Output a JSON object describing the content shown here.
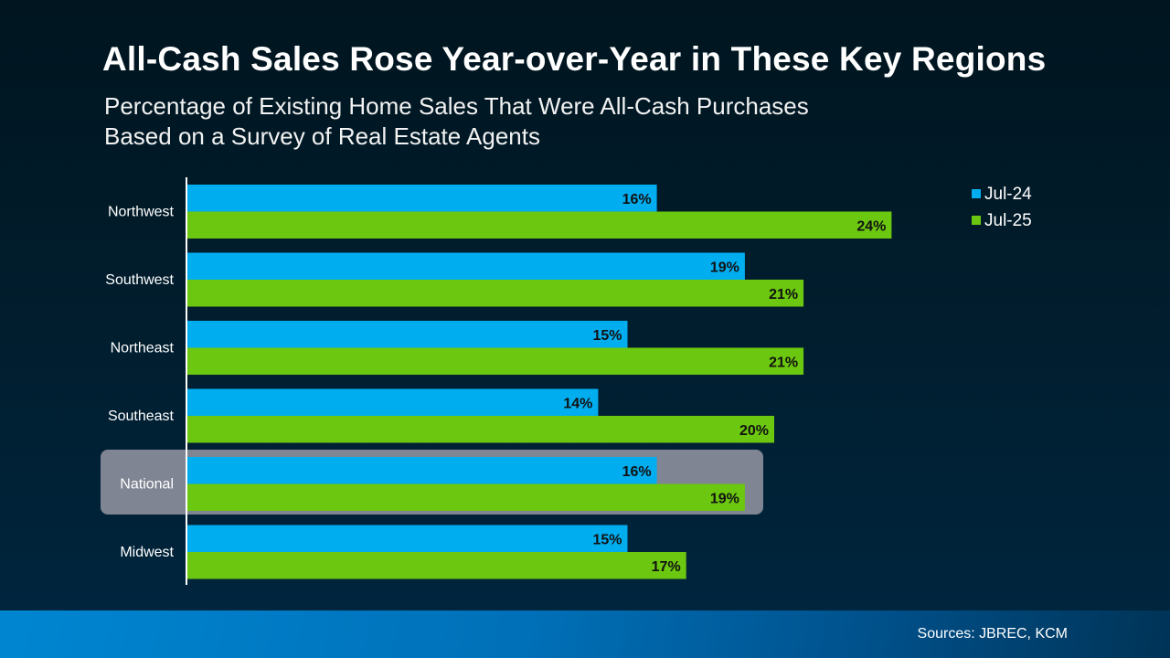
{
  "title": "All-Cash Sales Rose Year-over-Year in These Key Regions",
  "subtitle_lines": [
    "Percentage of Existing Home Sales That Were All-Cash Purchases",
    "Based on a Survey of Real Estate Agents"
  ],
  "footer": {
    "sources": "Sources: JBREC, KCM"
  },
  "chart_data": {
    "type": "bar",
    "orientation": "horizontal",
    "categories": [
      "Northwest",
      "Southwest",
      "Northeast",
      "Southeast",
      "National",
      "Midwest"
    ],
    "highlighted_category": "National",
    "series": [
      {
        "name": "Jul-24",
        "color": "#00adef",
        "values": [
          16,
          19,
          15,
          14,
          16,
          15
        ]
      },
      {
        "name": "Jul-25",
        "color": "#6bc70f",
        "values": [
          24,
          21,
          21,
          20,
          19,
          17
        ]
      }
    ],
    "value_suffix": "%",
    "xlim": [
      0,
      30
    ],
    "grid": false,
    "legend": "top-right",
    "highlight_color": "#808593"
  }
}
